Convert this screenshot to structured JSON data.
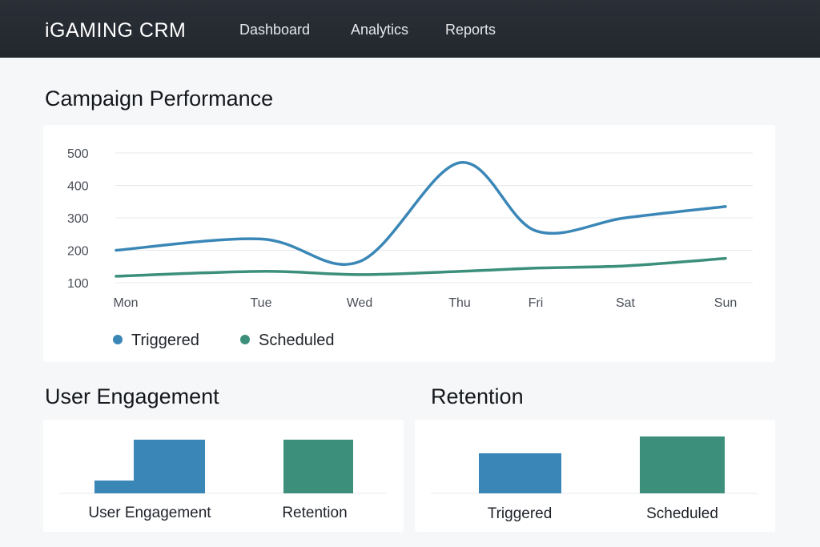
{
  "header": {
    "brand": "iGAMING CRM",
    "nav": [
      {
        "label": "Dashboard"
      },
      {
        "label": "Analytics"
      },
      {
        "label": "Reports"
      }
    ]
  },
  "sections": {
    "campaign": {
      "title": "Campaign Performance"
    },
    "engagement": {
      "title": "User Engagement"
    },
    "retention": {
      "title": "Retention"
    }
  },
  "colors": {
    "blue": "#3a87b7",
    "green": "#3b8f7b"
  },
  "chart_data": [
    {
      "type": "line",
      "title": "Campaign Performance",
      "categories": [
        "Mon",
        "Tue",
        "Wed",
        "Thu",
        "Fri",
        "Sat",
        "Sun"
      ],
      "series": [
        {
          "name": "Triggered",
          "values": [
            200,
            235,
            165,
            470,
            260,
            300,
            335
          ]
        },
        {
          "name": "Scheduled",
          "values": [
            120,
            135,
            125,
            135,
            145,
            152,
            175
          ]
        }
      ],
      "yticks": [
        100,
        200,
        300,
        400,
        500
      ],
      "ylim": [
        100,
        500
      ],
      "grid": true,
      "legend": "bottom-left"
    },
    {
      "type": "bar",
      "categories": [
        "User Engagement",
        "Retention"
      ],
      "series": [
        {
          "name": "",
          "values": [
            16,
            67
          ]
        },
        {
          "name": "",
          "values": [
            63,
            67
          ]
        }
      ],
      "ylim": [
        0,
        75
      ]
    },
    {
      "type": "bar",
      "categories": [
        "Triggered",
        "Scheduled"
      ],
      "values": [
        50,
        71
      ],
      "ylim": [
        0,
        75
      ]
    }
  ]
}
